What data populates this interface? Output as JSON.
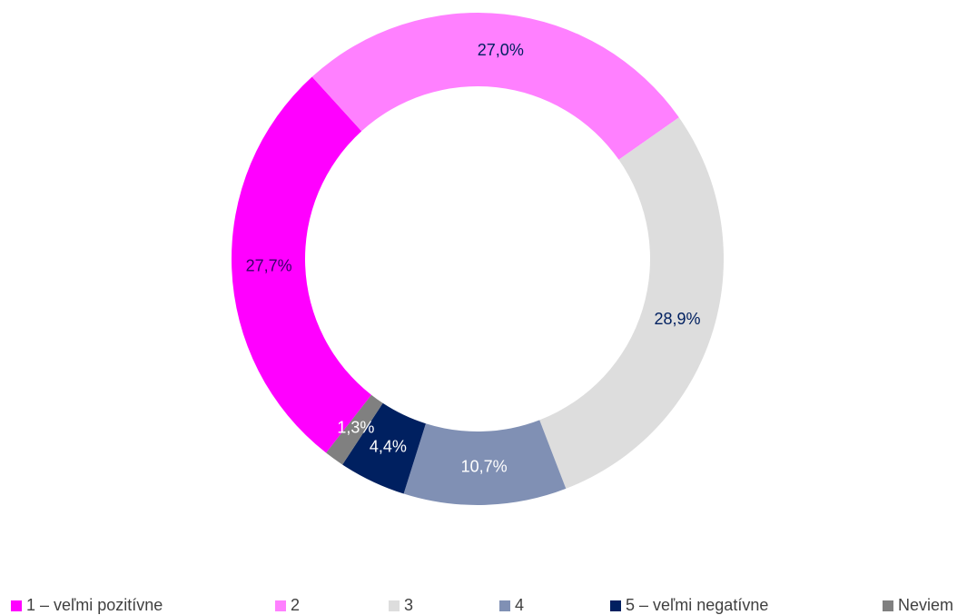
{
  "chart_data": {
    "type": "pie",
    "categories": [
      "1 – veľmi pozitívne",
      "2",
      "3",
      "4",
      "5 – veľmi negatívne",
      "Neviem"
    ],
    "values": [
      27.7,
      27.0,
      28.9,
      10.7,
      4.4,
      1.3
    ],
    "value_labels": [
      "27,7%",
      "27,0%",
      "28,9%",
      "10,7%",
      "4,4%",
      "1,3%"
    ],
    "colors": [
      "#ff00ff",
      "#ff80ff",
      "#dddddd",
      "#8090b4",
      "#002060",
      "#808080"
    ],
    "label_colors": [
      "#3a006a",
      "#002060",
      "#002060",
      "#ffffff",
      "#ffffff",
      "#ffffff"
    ],
    "legend": "bottom"
  }
}
